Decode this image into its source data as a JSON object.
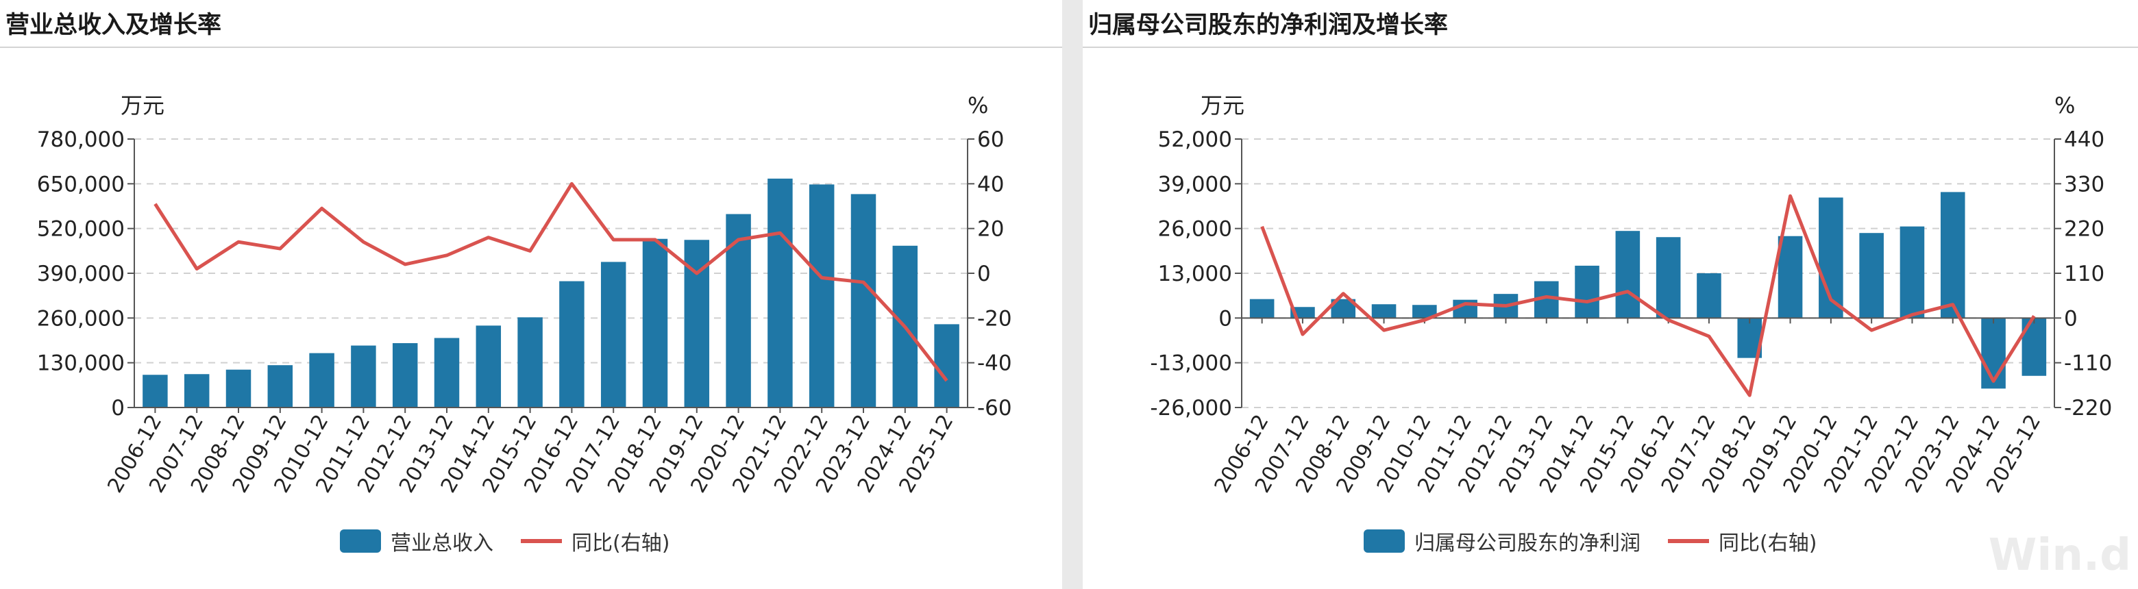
{
  "colors": {
    "bar": "#1f77a6",
    "line": "#d9534f",
    "axis": "#555555",
    "grid": "#d0d0d0",
    "text": "#222222"
  },
  "watermark": "Win.d",
  "chart_data": [
    {
      "type": "bar",
      "title": "营业总收入及增长率",
      "left_unit": "万元",
      "right_unit": "%",
      "categories": [
        "2006-12",
        "2007-12",
        "2008-12",
        "2009-12",
        "2010-12",
        "2011-12",
        "2012-12",
        "2013-12",
        "2014-12",
        "2015-12",
        "2016-12",
        "2017-12",
        "2018-12",
        "2019-12",
        "2020-12",
        "2021-12",
        "2022-12",
        "2023-12",
        "2024-12",
        "2025-12"
      ],
      "yticks_left": [
        "780,000",
        "650,000",
        "520,000",
        "390,000",
        "260,000",
        "130,000",
        "0"
      ],
      "yticks_right": [
        "60",
        "40",
        "20",
        "0",
        "-20",
        "-40",
        "-60"
      ],
      "ylim_left": [
        0,
        780000
      ],
      "ylim_right": [
        -60,
        60
      ],
      "series": [
        {
          "name": "营业总收入",
          "kind": "bar",
          "axis": "left",
          "values": [
            95000,
            97000,
            110000,
            123000,
            158000,
            180000,
            187000,
            202000,
            238000,
            262000,
            367000,
            423000,
            490000,
            487000,
            562000,
            665000,
            648000,
            620000,
            470000,
            242000
          ]
        },
        {
          "name": "同比(右轴)",
          "kind": "line",
          "axis": "right",
          "values": [
            31,
            2,
            14,
            11,
            29,
            14,
            4,
            8,
            16,
            10,
            40,
            15,
            15,
            0,
            15,
            18,
            -2,
            -4,
            -24,
            -48
          ]
        }
      ]
    },
    {
      "type": "bar",
      "title": "归属母公司股东的净利润及增长率",
      "left_unit": "万元",
      "right_unit": "%",
      "categories": [
        "2006-12",
        "2007-12",
        "2008-12",
        "2009-12",
        "2010-12",
        "2011-12",
        "2012-12",
        "2013-12",
        "2014-12",
        "2015-12",
        "2016-12",
        "2017-12",
        "2018-12",
        "2019-12",
        "2020-12",
        "2021-12",
        "2022-12",
        "2023-12",
        "2024-12",
        "2025-12"
      ],
      "yticks_left": [
        "52,000",
        "39,000",
        "26,000",
        "13,000",
        "0",
        "-13,000",
        "-26,000"
      ],
      "yticks_right": [
        "440",
        "330",
        "220",
        "110",
        "0",
        "-110",
        "-220"
      ],
      "ylim_left": [
        -26000,
        52000
      ],
      "ylim_right": [
        -220,
        440
      ],
      "series": [
        {
          "name": "归属母公司股东的净利润",
          "kind": "bar",
          "axis": "left",
          "values": [
            5500,
            3200,
            5500,
            4000,
            3800,
            5300,
            7000,
            10700,
            15200,
            25300,
            23500,
            13000,
            -11600,
            23800,
            35000,
            24700,
            26600,
            36600,
            -20500,
            -16800
          ]
        },
        {
          "name": "同比(右轴)",
          "kind": "line",
          "axis": "right",
          "values": [
            225,
            -40,
            60,
            -30,
            -5,
            35,
            30,
            52,
            40,
            65,
            -5,
            -45,
            -190,
            300,
            45,
            -30,
            8,
            33,
            -155,
            5
          ]
        }
      ]
    }
  ]
}
